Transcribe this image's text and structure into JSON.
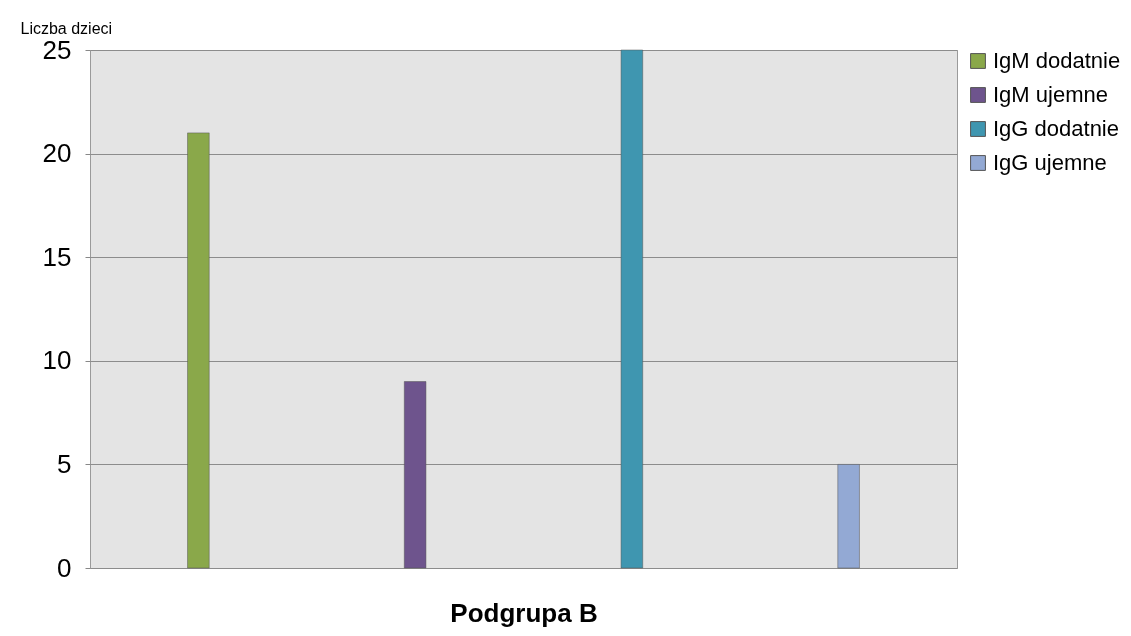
{
  "chart_data": {
    "type": "bar",
    "xlabel": "Podgrupa  B",
    "ylabel": "Liczba dzieci",
    "categories": [
      null
    ],
    "series": [
      {
        "name": "IgM dodatnie",
        "color": "#8aa84a",
        "values": [
          21
        ]
      },
      {
        "name": "IgM ujemne",
        "color": "#6e548d",
        "values": [
          9
        ]
      },
      {
        "name": "IgG dodatnie",
        "color": "#3f96b0",
        "values": [
          25
        ]
      },
      {
        "name": "IgG ujemne",
        "color": "#93a9d4",
        "values": [
          5
        ]
      }
    ],
    "ylim": [
      0,
      25
    ],
    "yticks": [
      0,
      5,
      10,
      15,
      20,
      25
    ],
    "grid": "y",
    "legend": "right"
  }
}
